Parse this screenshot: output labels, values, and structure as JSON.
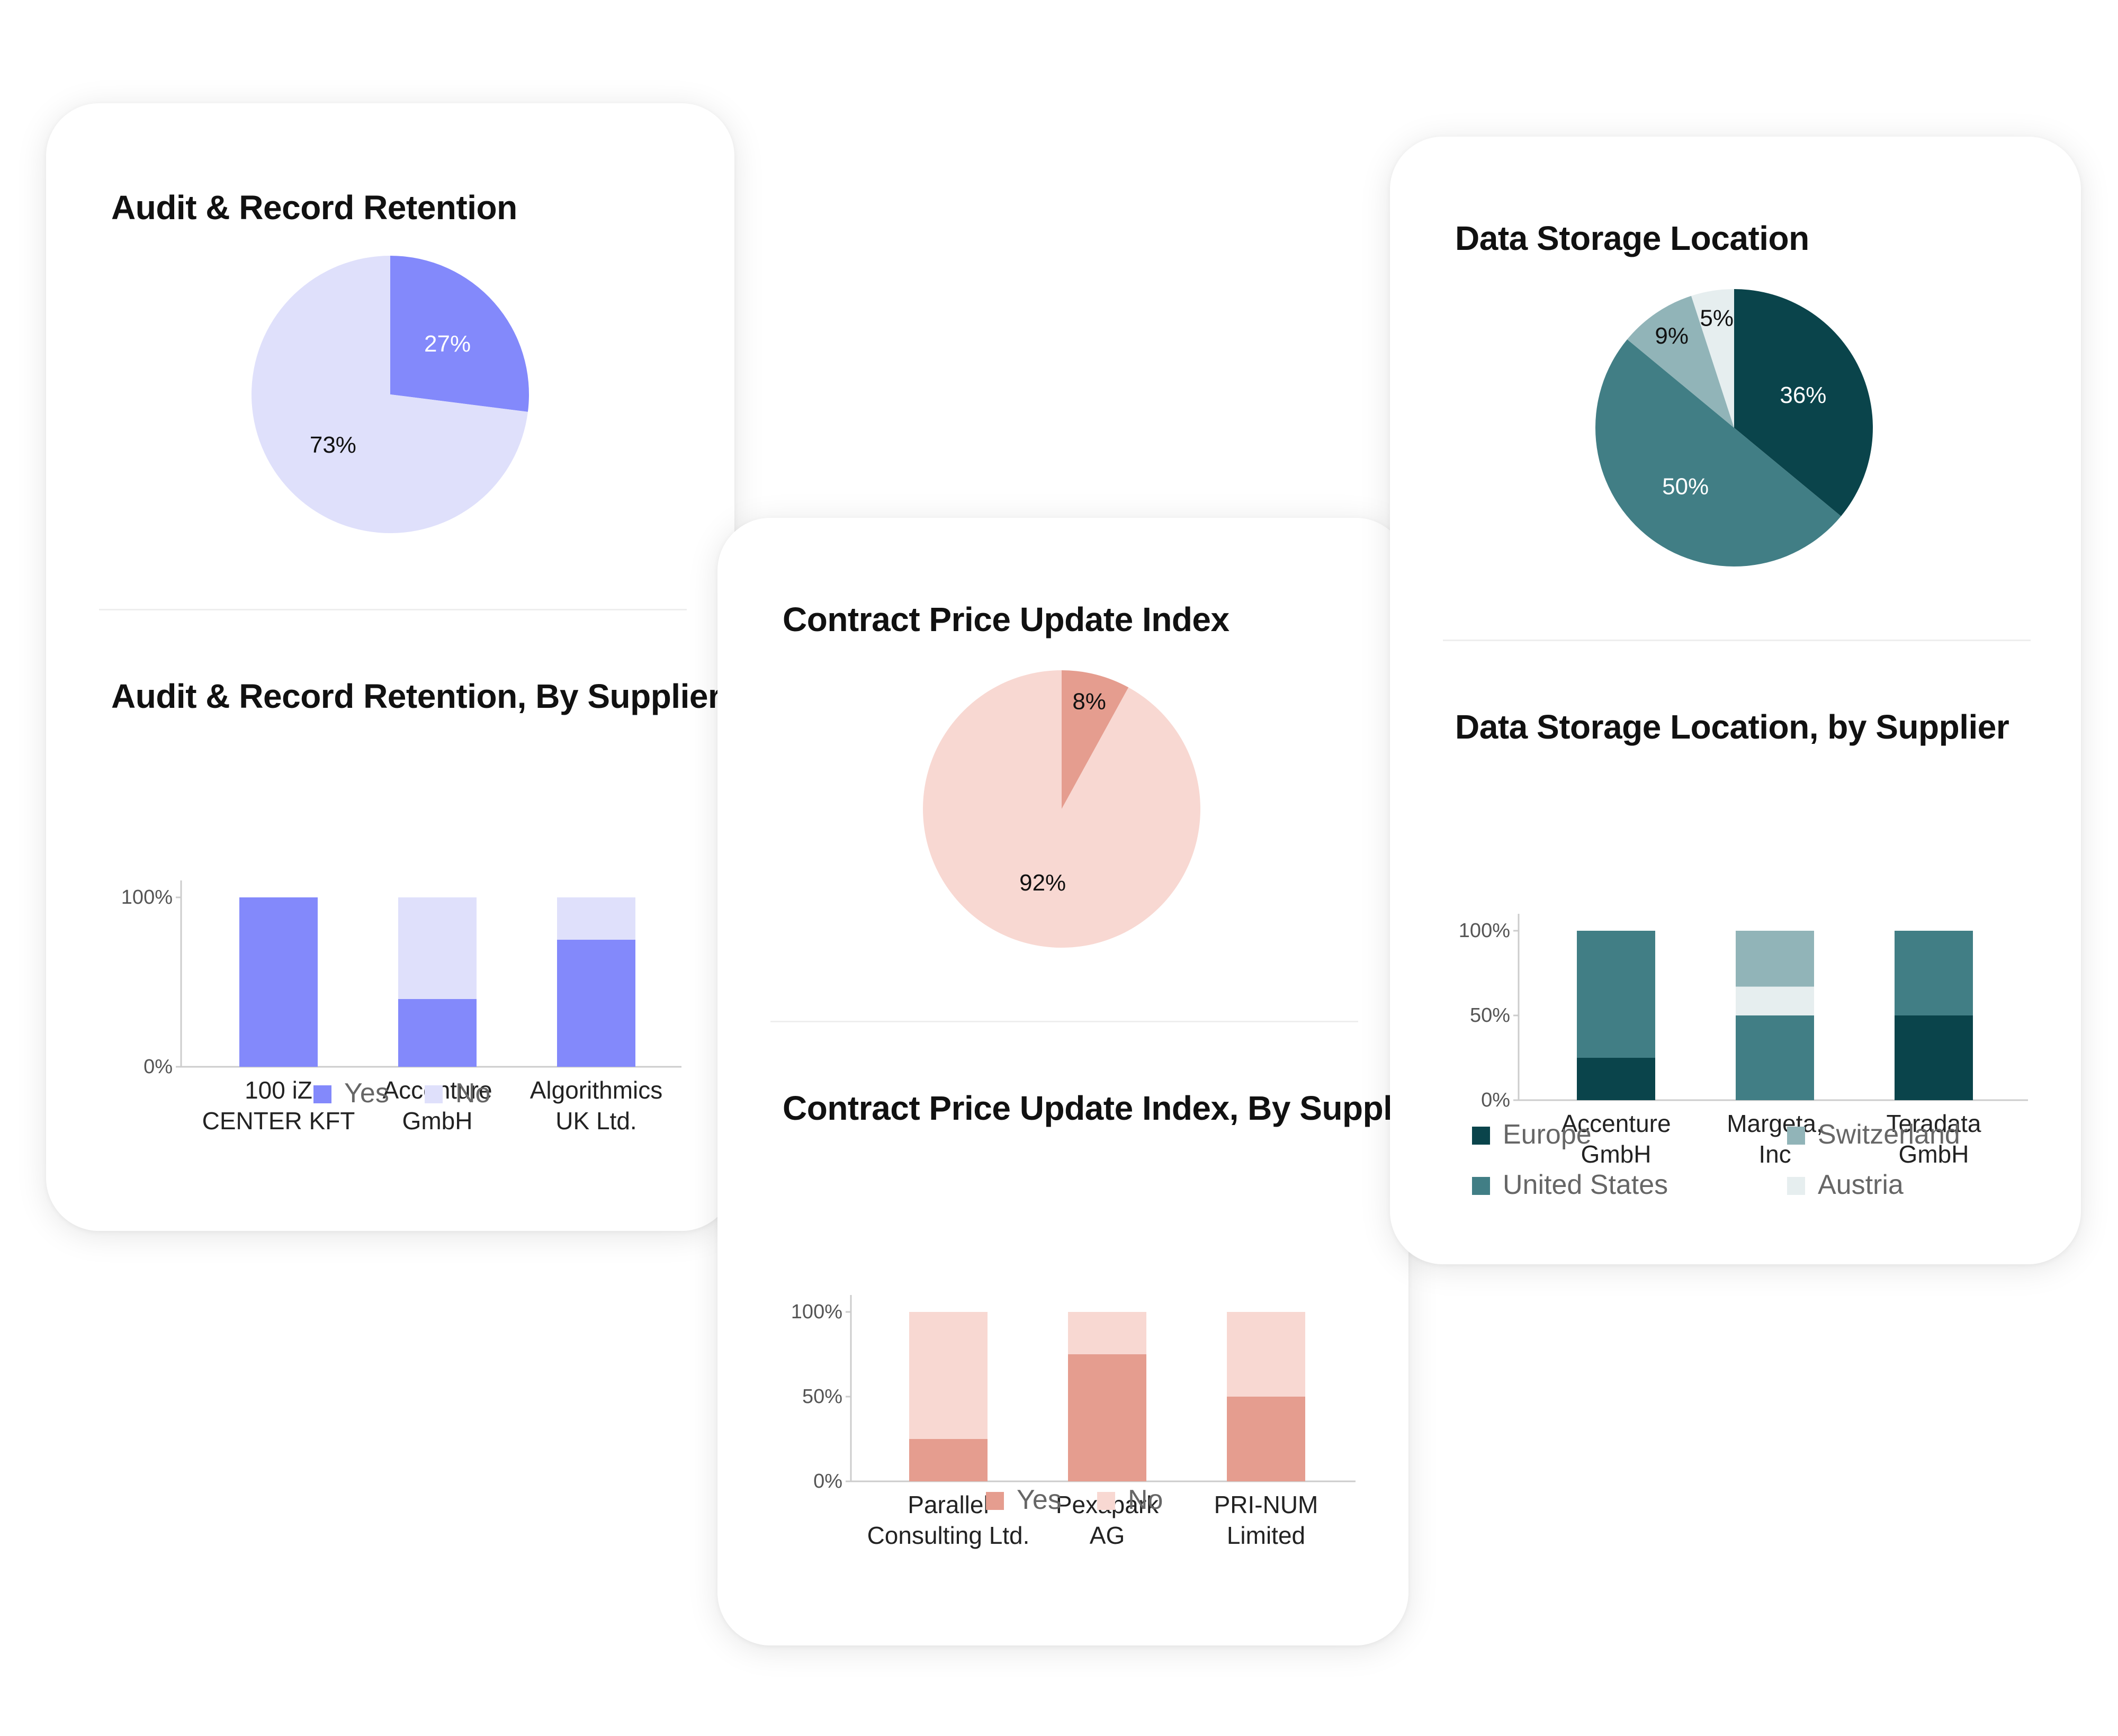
{
  "colors": {
    "audit_yes": "#8389fb",
    "audit_no": "#dfe0fb",
    "contract_yes": "#e59d8f",
    "contract_no": "#f8d8d2",
    "europe": "#0a444b",
    "united_states": "#417e85",
    "switzerland": "#91b4b8",
    "austria": "#e6eeef"
  },
  "cards": {
    "audit": {
      "pie_title": "Audit & Record Retention",
      "bar_title": "Audit & Record Retention, By Supplier",
      "legend": {
        "yes": "Yes",
        "no": "No"
      }
    },
    "contract": {
      "pie_title": "Contract Price Update Index",
      "bar_title": "Contract Price Update Index, By Suppl..",
      "legend": {
        "yes": "Yes",
        "no": "No"
      }
    },
    "storage": {
      "pie_title": "Data Storage Location",
      "bar_title": "Data Storage Location, by Supplier",
      "legend": {
        "europe": "Europe",
        "switzerland": "Switzerland",
        "united_states": "United States",
        "austria": "Austria"
      }
    }
  },
  "chart_data": [
    {
      "id": "audit_pie",
      "type": "pie",
      "title": "Audit & Record Retention",
      "slices": [
        {
          "name": "Yes",
          "value": 27,
          "label": "27%",
          "color": "#8389fb",
          "label_color": "#ffffff"
        },
        {
          "name": "No",
          "value": 73,
          "label": "73%",
          "color": "#dfe0fb",
          "label_color": "#111111"
        }
      ]
    },
    {
      "id": "audit_bar",
      "type": "bar",
      "stacked": true,
      "title": "Audit & Record Retention, By Supplier",
      "categories": [
        [
          "100 iZ",
          "CENTER KFT"
        ],
        [
          "Accenture",
          "GmbH"
        ],
        [
          "Algorithmics",
          "UK Ltd."
        ]
      ],
      "yticks": [
        "100%",
        "0%"
      ],
      "ylim": [
        0,
        100
      ],
      "legend_position": "bottom",
      "series": [
        {
          "name": "Yes",
          "color": "#8389fb",
          "values": [
            100,
            40,
            75
          ]
        },
        {
          "name": "No",
          "color": "#dfe0fb",
          "values": [
            0,
            60,
            25
          ]
        }
      ]
    },
    {
      "id": "contract_pie",
      "type": "pie",
      "title": "Contract Price Update Index",
      "slices": [
        {
          "name": "Yes",
          "value": 8,
          "label": "8%",
          "color": "#e59d8f",
          "label_color": "#111111"
        },
        {
          "name": "No",
          "value": 92,
          "label": "92%",
          "color": "#f8d8d2",
          "label_color": "#111111"
        }
      ]
    },
    {
      "id": "contract_bar",
      "type": "bar",
      "stacked": true,
      "title": "Contract Price Update Index, By Suppl..",
      "categories": [
        [
          "Parallel",
          "Consulting Ltd."
        ],
        [
          "Pexapark",
          "AG"
        ],
        [
          "PRI-NUM",
          "Limited"
        ]
      ],
      "yticks": [
        "100%",
        "50%",
        "0%"
      ],
      "ylim": [
        0,
        100
      ],
      "legend_position": "bottom",
      "series": [
        {
          "name": "Yes",
          "color": "#e59d8f",
          "values": [
            25,
            75,
            50
          ]
        },
        {
          "name": "No",
          "color": "#f8d8d2",
          "values": [
            75,
            25,
            50
          ]
        }
      ]
    },
    {
      "id": "storage_pie",
      "type": "pie",
      "title": "Data Storage Location",
      "slices": [
        {
          "name": "Europe",
          "value": 36,
          "label": "36%",
          "color": "#0a444b",
          "label_color": "#ffffff"
        },
        {
          "name": "United States",
          "value": 50,
          "label": "50%",
          "color": "#417e85",
          "label_color": "#ffffff"
        },
        {
          "name": "Switzerland",
          "value": 9,
          "label": "9%",
          "color": "#91b4b8",
          "label_color": "#111111"
        },
        {
          "name": "Austria",
          "value": 5,
          "label": "5%",
          "color": "#e6eeef",
          "label_color": "#111111"
        }
      ]
    },
    {
      "id": "storage_bar",
      "type": "bar",
      "stacked": true,
      "title": "Data Storage Location, by Supplier",
      "categories": [
        [
          "Accenture",
          "GmbH"
        ],
        [
          "Margeta,",
          "Inc"
        ],
        [
          "Teradata",
          "GmbH"
        ]
      ],
      "yticks": [
        "100%",
        "50%",
        "0%"
      ],
      "ylim": [
        0,
        100
      ],
      "legend_position": "bottom",
      "series": [
        {
          "name": "Europe",
          "color": "#0a444b",
          "values": [
            25,
            0,
            50
          ]
        },
        {
          "name": "United States",
          "color": "#417e85",
          "values": [
            75,
            50,
            50
          ]
        },
        {
          "name": "Austria",
          "color": "#e6eeef",
          "values": [
            0,
            17,
            0
          ]
        },
        {
          "name": "Switzerland",
          "color": "#91b4b8",
          "values": [
            0,
            33,
            0
          ]
        }
      ]
    }
  ]
}
